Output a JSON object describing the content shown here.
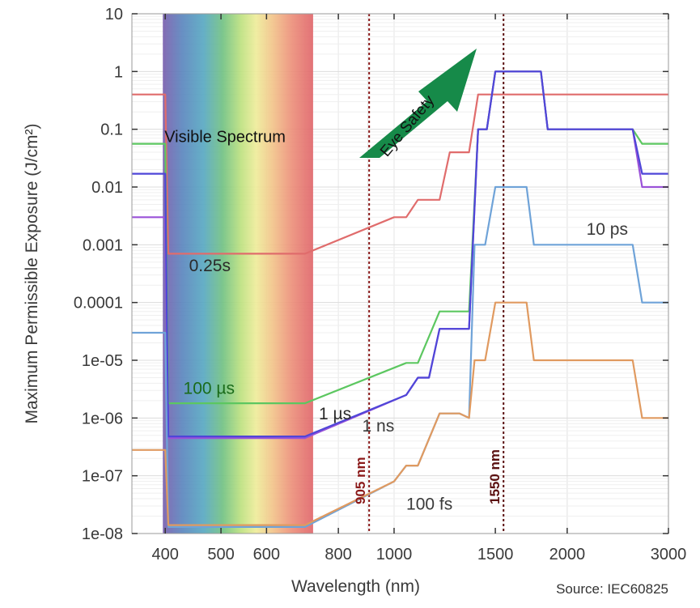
{
  "chart_data": {
    "type": "line",
    "x_scale": "log",
    "y_scale": "log",
    "xlabel": "Wavelength (nm)",
    "ylabel": "Maximum Permissible Exposure (J/cm²)",
    "xlim": [
      350,
      3000
    ],
    "ylim": [
      1e-08,
      10
    ],
    "grid": true,
    "x_ticks": [
      400,
      500,
      600,
      800,
      1000,
      1500,
      2000,
      3000
    ],
    "x_tick_labels": [
      "400",
      "500",
      "600",
      "800",
      "1000",
      "1500",
      "2000",
      "3000"
    ],
    "y_ticks": [
      1e-08,
      1e-07,
      1e-06,
      1e-05,
      0.0001,
      0.001,
      0.01,
      0.1,
      1,
      10
    ],
    "y_tick_labels": [
      "1e-08",
      "1e-07",
      "1e-06",
      "1e-05",
      "0.0001",
      "0.001",
      "0.01",
      "0.1",
      "1",
      "10"
    ],
    "visible_band": {
      "label": "Visible Spectrum",
      "x_range": [
        400,
        700
      ]
    },
    "markers": [
      {
        "label": "905 nm",
        "x": 905,
        "color": "#8b1a1a"
      },
      {
        "label": "1550 nm",
        "x": 1550,
        "color": "#5a1010"
      }
    ],
    "arrow_label": "Eye Safety",
    "source_note": "Source: IEC60825",
    "series": [
      {
        "name": "0.25s",
        "color": "#e06c6c",
        "points": [
          [
            350,
            0.4
          ],
          [
            400,
            0.4
          ],
          [
            405,
            0.0007
          ],
          [
            700,
            0.0007
          ],
          [
            1000,
            0.003
          ],
          [
            1050,
            0.003
          ],
          [
            1100,
            0.006
          ],
          [
            1200,
            0.006
          ],
          [
            1250,
            0.04
          ],
          [
            1350,
            0.04
          ],
          [
            1400,
            0.4
          ],
          [
            1800,
            0.4
          ],
          [
            3000,
            0.4
          ]
        ]
      },
      {
        "name": "100 µs",
        "color": "#5cc760",
        "points": [
          [
            350,
            0.056
          ],
          [
            400,
            0.056
          ],
          [
            405,
            1.8e-06
          ],
          [
            700,
            1.8e-06
          ],
          [
            1050,
            9e-06
          ],
          [
            1100,
            9e-06
          ],
          [
            1200,
            7e-05
          ],
          [
            1350,
            7e-05
          ],
          [
            1400,
            0.1
          ],
          [
            1450,
            0.1
          ],
          [
            1500,
            1
          ],
          [
            1800,
            1
          ],
          [
            1850,
            0.1
          ],
          [
            2600,
            0.1
          ],
          [
            2700,
            0.056
          ],
          [
            3000,
            0.056
          ]
        ]
      },
      {
        "name": "1 µs",
        "color": "#9a52d8",
        "points": [
          [
            350,
            0.003
          ],
          [
            400,
            0.003
          ],
          [
            405,
            4.5e-07
          ],
          [
            700,
            4.5e-07
          ],
          [
            1050,
            2.5e-06
          ],
          [
            1100,
            5e-06
          ],
          [
            1150,
            5e-06
          ],
          [
            1200,
            3.5e-05
          ],
          [
            1350,
            3.5e-05
          ],
          [
            1400,
            0.1
          ],
          [
            1450,
            0.1
          ],
          [
            1500,
            1
          ],
          [
            1800,
            1
          ],
          [
            1850,
            0.1
          ],
          [
            2600,
            0.1
          ],
          [
            2700,
            0.01
          ],
          [
            3000,
            0.01
          ]
        ]
      },
      {
        "name": "1 ns",
        "color": "#4f46d8",
        "points": [
          [
            350,
            0.017
          ],
          [
            400,
            0.017
          ],
          [
            405,
            4.8e-07
          ],
          [
            700,
            4.8e-07
          ],
          [
            1050,
            2.5e-06
          ],
          [
            1100,
            5e-06
          ],
          [
            1150,
            5e-06
          ],
          [
            1200,
            3.5e-05
          ],
          [
            1350,
            3.5e-05
          ],
          [
            1400,
            0.1
          ],
          [
            1450,
            0.1
          ],
          [
            1500,
            1
          ],
          [
            1800,
            1
          ],
          [
            1850,
            0.1
          ],
          [
            2600,
            0.1
          ],
          [
            2700,
            0.017
          ],
          [
            3000,
            0.017
          ]
        ]
      },
      {
        "name": "10 ps",
        "color": "#6fa3d8",
        "points": [
          [
            350,
            3e-05
          ],
          [
            400,
            3e-05
          ],
          [
            405,
            1.3e-08
          ],
          [
            700,
            1.3e-08
          ],
          [
            1000,
            8e-08
          ],
          [
            1050,
            1.5e-07
          ],
          [
            1100,
            1.5e-07
          ],
          [
            1200,
            1.2e-06
          ],
          [
            1300,
            1.2e-06
          ],
          [
            1350,
            1e-06
          ],
          [
            1380,
            0.001
          ],
          [
            1440,
            0.001
          ],
          [
            1500,
            0.01
          ],
          [
            1700,
            0.01
          ],
          [
            1750,
            0.001
          ],
          [
            2600,
            0.001
          ],
          [
            2700,
            0.0001
          ],
          [
            3000,
            0.0001
          ]
        ]
      },
      {
        "name": "100 fs",
        "color": "#e09a60",
        "points": [
          [
            350,
            2.8e-07
          ],
          [
            400,
            2.8e-07
          ],
          [
            405,
            1.4e-08
          ],
          [
            700,
            1.4e-08
          ],
          [
            1000,
            8e-08
          ],
          [
            1050,
            1.5e-07
          ],
          [
            1100,
            1.5e-07
          ],
          [
            1200,
            1.2e-06
          ],
          [
            1300,
            1.2e-06
          ],
          [
            1350,
            1e-06
          ],
          [
            1380,
            1e-05
          ],
          [
            1440,
            1e-05
          ],
          [
            1500,
            0.0001
          ],
          [
            1700,
            0.0001
          ],
          [
            1750,
            1e-05
          ],
          [
            2600,
            1e-05
          ],
          [
            2700,
            1e-06
          ],
          [
            3000,
            1e-06
          ]
        ]
      }
    ],
    "series_labels": [
      {
        "name": "0.25s",
        "x": 440,
        "y": 0.00035,
        "color": "#2a2a2a"
      },
      {
        "name": "100 µs",
        "x": 430,
        "y": 2.6e-06,
        "color": "#1a6b1a"
      },
      {
        "name": "1 µs",
        "x": 740,
        "y": 9.5e-07,
        "color": "#2a2a2a"
      },
      {
        "name": "1 ns",
        "x": 880,
        "y": 5.8e-07,
        "color": "#3a3a3a"
      },
      {
        "name": "10 ps",
        "x": 2160,
        "y": 0.0015,
        "color": "#3a3a3a"
      },
      {
        "name": "100 fs",
        "x": 1050,
        "y": 2.6e-08,
        "color": "#3a3a3a"
      }
    ]
  }
}
